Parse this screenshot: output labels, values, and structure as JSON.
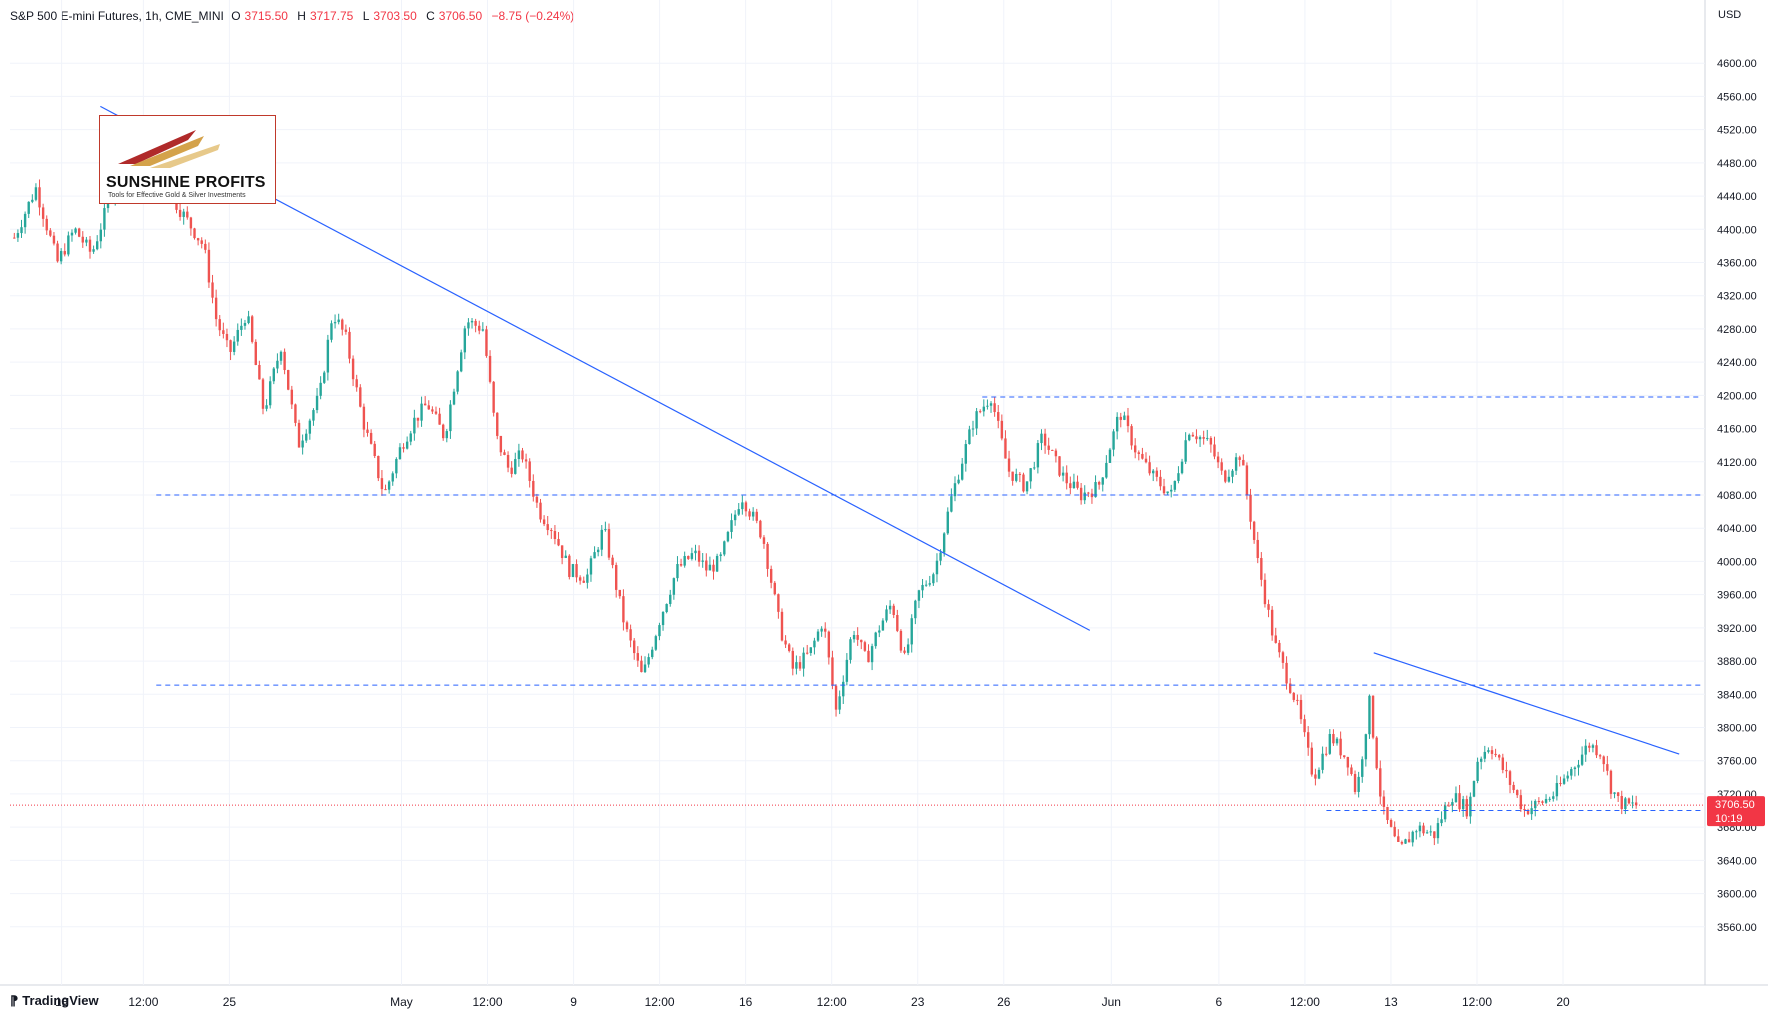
{
  "header": {
    "symbol": "S&P 500 E-mini Futures, 1h, CME_MINI",
    "open_label": "O",
    "open_value": "3715.50",
    "high_label": "H",
    "high_value": "3717.75",
    "low_label": "L",
    "low_value": "3703.50",
    "close_label": "C",
    "close_value": "3706.50",
    "change": "−8.75 (−0.24%)"
  },
  "currency": "USD",
  "logo": {
    "title": "SUNSHINE PROFITS",
    "tagline": "Tools for Effective Gold & Silver Investments"
  },
  "brand": "TradingView",
  "price_badge": {
    "price": "3706.50",
    "countdown": "10:19"
  },
  "colors": {
    "up": "#26a69a",
    "down": "#ef5350",
    "trendline": "#2962ff",
    "badge": "#f23645"
  },
  "chart_data": {
    "type": "line",
    "title": "S&P 500 E-mini Futures, 1h, CME_MINI",
    "ylim": [
      3520,
      4640
    ],
    "y_ticks": [
      "4600.00",
      "4560.00",
      "4520.00",
      "4480.00",
      "4440.00",
      "4400.00",
      "4360.00",
      "4320.00",
      "4280.00",
      "4240.00",
      "4200.00",
      "4160.00",
      "4120.00",
      "4080.00",
      "4040.00",
      "4000.00",
      "3960.00",
      "3920.00",
      "3880.00",
      "3840.00",
      "3800.00",
      "3760.00",
      "3720.00",
      "3680.00",
      "3640.00",
      "3600.00",
      "3560.00"
    ],
    "x_ticks": [
      "18",
      "12:00",
      "25",
      "May",
      "12:00",
      "9",
      "12:00",
      "16",
      "12:00",
      "23",
      "26",
      "Jun",
      "6",
      "12:00",
      "13",
      "12:00",
      "20"
    ],
    "x_tick_positions": [
      0.6,
      2.5,
      4.5,
      8.5,
      10.5,
      12.5,
      14.5,
      16.5,
      18.5,
      20.5,
      22.5,
      25,
      27.5,
      29.5,
      31.5,
      33.5,
      35.5
    ],
    "x_range": [
      -0.6,
      38.8
    ],
    "price_series": {
      "x": [
        -0.5,
        0,
        0.5,
        0.9,
        1.3,
        1.8,
        2.3,
        2.9,
        3.4,
        3.9,
        4.2,
        4.5,
        4.9,
        5.3,
        5.7,
        6.1,
        6.6,
        6.9,
        7.2,
        7.6,
        8.1,
        8.5,
        8.8,
        9.1,
        9.5,
        10.0,
        10.4,
        10.7,
        11.0,
        11.3,
        11.7,
        12.0,
        12.4,
        12.8,
        13.2,
        13.7,
        14.1,
        14.5,
        14.9,
        15.3,
        15.6,
        15.9,
        16.4,
        16.9,
        17.3,
        17.6,
        18.0,
        18.3,
        18.6,
        19.0,
        19.3,
        19.6,
        19.9,
        20.2,
        20.5,
        20.9,
        21.3,
        21.8,
        22.2,
        22.6,
        23.0,
        23.4,
        23.9,
        24.3,
        24.7,
        25.2,
        25.6,
        26.0,
        26.4,
        26.8,
        27.3,
        27.6,
        28.0,
        28.4,
        28.8,
        29.3,
        29.7,
        30.1,
        30.5,
        30.7,
        31.0,
        31.3,
        31.7,
        32.1,
        32.5,
        32.9,
        33.3,
        33.5,
        33.8,
        34.2,
        34.6,
        35.0,
        35.3,
        35.7,
        36.1,
        36.4,
        36.6,
        36.8,
        37.0,
        37.2
      ],
      "y": [
        4390,
        4450,
        4360,
        4400,
        4370,
        4450,
        4480,
        4460,
        4420,
        4380,
        4290,
        4250,
        4300,
        4180,
        4260,
        4140,
        4200,
        4300,
        4270,
        4170,
        4080,
        4140,
        4170,
        4190,
        4150,
        4290,
        4280,
        4150,
        4110,
        4130,
        4060,
        4040,
        3990,
        3980,
        4040,
        3920,
        3860,
        3930,
        3990,
        4010,
        3990,
        4000,
        4080,
        4030,
        3920,
        3870,
        3890,
        3930,
        3820,
        3920,
        3880,
        3920,
        3950,
        3880,
        3960,
        3990,
        4080,
        4170,
        4200,
        4110,
        4090,
        4150,
        4100,
        4080,
        4090,
        4180,
        4130,
        4100,
        4080,
        4160,
        4140,
        4100,
        4130,
        4000,
        3900,
        3830,
        3740,
        3790,
        3760,
        3720,
        3830,
        3700,
        3650,
        3680,
        3670,
        3720,
        3700,
        3760,
        3780,
        3740,
        3700,
        3710,
        3720,
        3750,
        3780,
        3770,
        3730,
        3710,
        3706,
        3706.5
      ]
    },
    "trendlines": [
      {
        "name": "",
        "x": [
          1.5,
          24.5
        ],
        "y": [
          4548,
          3917
        ]
      },
      {
        "name": "",
        "x": [
          31.1,
          38.2
        ],
        "y": [
          3890,
          3768
        ]
      }
    ],
    "horizontal_levels": [
      {
        "y": 4198,
        "x": [
          22.0,
          38.7
        ]
      },
      {
        "y": 4080,
        "x": [
          2.8,
          38.7
        ]
      },
      {
        "y": 3851,
        "x": [
          2.8,
          38.7
        ]
      },
      {
        "y": 3700,
        "x": [
          30.0,
          38.7
        ]
      }
    ],
    "current_price": 3706.5,
    "grid": true,
    "legend": "none"
  }
}
